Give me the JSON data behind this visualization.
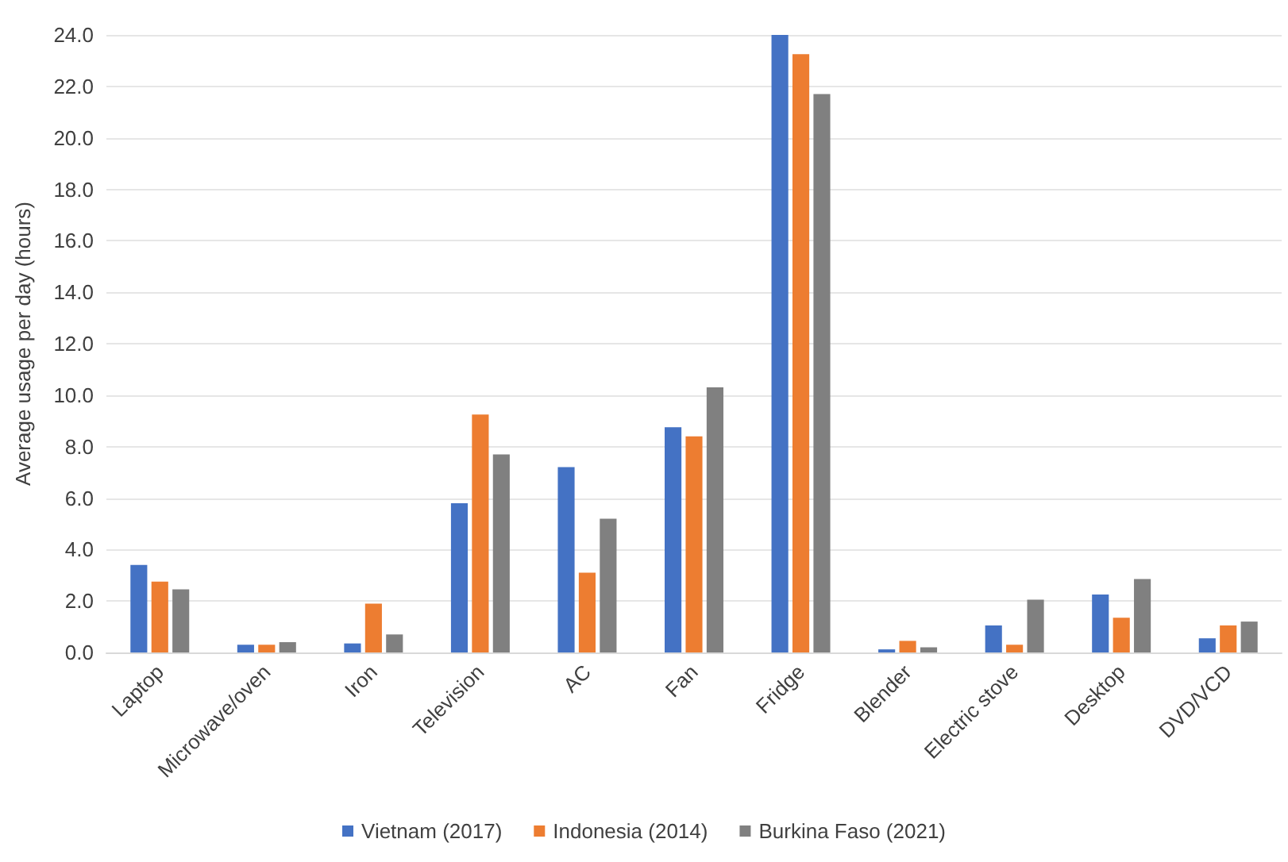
{
  "chart_data": {
    "type": "bar",
    "ylabel": "Average usage per day (hours)",
    "categories": [
      "Laptop",
      "Microwave/oven",
      "Iron",
      "Television",
      "AC",
      "Fan",
      "Fridge",
      "Blender",
      "Electric stove",
      "Desktop",
      "DVD/VCD"
    ],
    "series": [
      {
        "name": "Vietnam (2017)",
        "color": "#4472c4",
        "values": [
          3.4,
          0.3,
          0.35,
          5.8,
          7.2,
          8.75,
          24.0,
          0.12,
          1.05,
          2.25,
          0.55
        ]
      },
      {
        "name": "Indonesia (2014)",
        "color": "#ed7d31",
        "values": [
          2.75,
          0.3,
          1.9,
          9.25,
          3.1,
          8.4,
          23.25,
          0.45,
          0.3,
          1.35,
          1.05
        ]
      },
      {
        "name": "Burkina Faso (2021)",
        "color": "#808080",
        "values": [
          2.45,
          0.4,
          0.7,
          7.7,
          5.2,
          10.3,
          21.7,
          0.2,
          2.05,
          2.85,
          1.2
        ]
      }
    ],
    "ylim": [
      0,
      24
    ],
    "yticks": [
      {
        "value": 0,
        "label": "0.0"
      },
      {
        "value": 2,
        "label": "2.0"
      },
      {
        "value": 4,
        "label": "4.0"
      },
      {
        "value": 6,
        "label": "6.0"
      },
      {
        "value": 8,
        "label": "8.0"
      },
      {
        "value": 10,
        "label": "10.0"
      },
      {
        "value": 12,
        "label": "12.0"
      },
      {
        "value": 14,
        "label": "14.0"
      },
      {
        "value": 16,
        "label": "16.0"
      },
      {
        "value": 18,
        "label": "18.0"
      },
      {
        "value": 20,
        "label": "20.0"
      },
      {
        "value": 22,
        "label": "22.0"
      },
      {
        "value": 24,
        "label": "24.0"
      }
    ],
    "grid": "y",
    "legend": "bottom"
  }
}
